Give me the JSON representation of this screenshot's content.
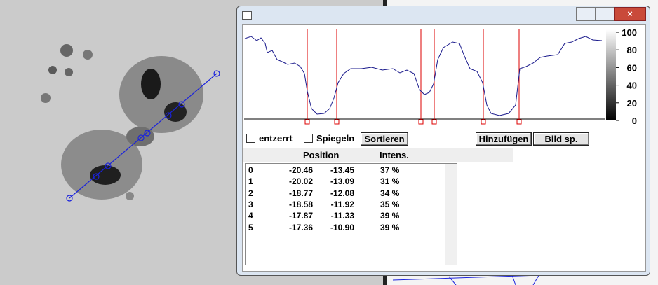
{
  "colorbar_ticks": [
    100,
    80,
    60,
    40,
    20,
    0
  ],
  "controls": {
    "checkbox_1": "entzerrt",
    "checkbox_2": "Spiegeln",
    "sort_button": "Sortieren",
    "add_button": "Hinzufügen",
    "image_button": "Bild sp."
  },
  "table": {
    "columns": [
      "Position",
      "Intens."
    ],
    "rows": [
      [
        "0",
        "-20.46",
        "-13.45",
        "37 %"
      ],
      [
        "1",
        "-20.02",
        "-13.09",
        "31 %"
      ],
      [
        "2",
        "-18.77",
        "-12.08",
        "34 %"
      ],
      [
        "3",
        "-18.58",
        "-11.92",
        "35 %"
      ],
      [
        "4",
        "-17.87",
        "-11.33",
        "39 %"
      ],
      [
        "5",
        "-17.36",
        "-10.90",
        "39 %"
      ]
    ]
  }
}
